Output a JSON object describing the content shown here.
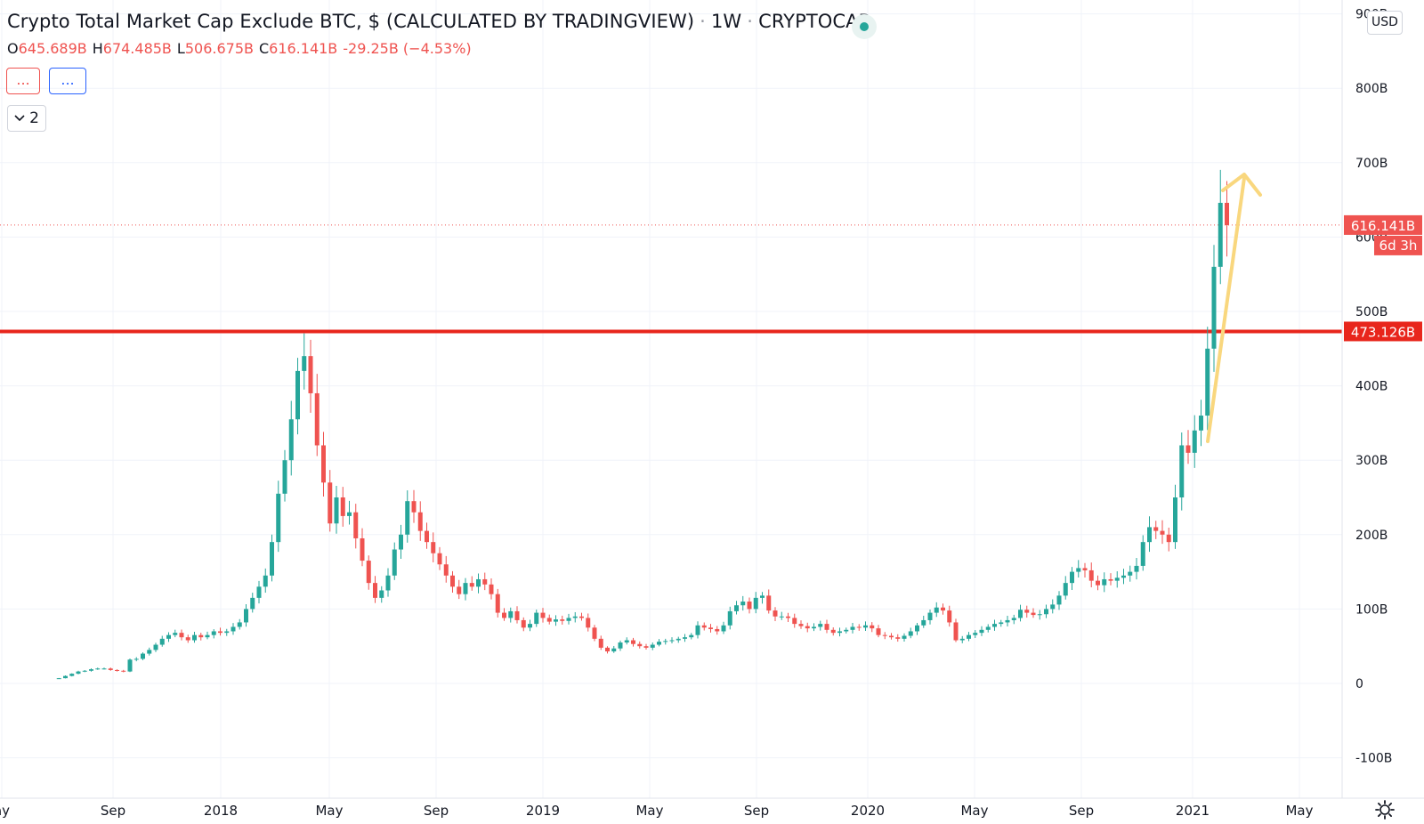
{
  "header": {
    "title": "Crypto Total Market Cap Exclude BTC, $ (CALCULATED BY TRADINGVIEW)",
    "interval": "1W",
    "source": "CRYPTOCAP"
  },
  "ohlc": {
    "o_label": "O",
    "o_value": "645.689B",
    "h_label": "H",
    "h_value": "674.485B",
    "l_label": "L",
    "l_value": "506.675B",
    "c_label": "C",
    "c_value": "616.141B",
    "change": "-29.25B (−4.53%)"
  },
  "indicator_buttons": {
    "red": "...",
    "blue": "..."
  },
  "collapse": {
    "count": "2"
  },
  "currency": "USD",
  "price_badges": {
    "last_price": "616.141B",
    "countdown": "6d 3h",
    "level_price": "473.126B"
  },
  "colors": {
    "up": "#26a69a",
    "down": "#ef5350",
    "level_line": "#e8261c",
    "arrow": "#f9d77e",
    "grid": "#f0f3fa",
    "text": "#131722"
  },
  "icons": {
    "settings": "gear-icon",
    "collapse": "chevron-down-icon",
    "live": "status-dot-icon"
  },
  "chart_data": {
    "type": "candlestick",
    "interval": "1W",
    "y_ticks": [
      "900B",
      "800B",
      "700B",
      "600B",
      "500B",
      "400B",
      "300B",
      "200B",
      "100B",
      "0",
      "-100B"
    ],
    "x_ticks": [
      "ay",
      "Sep",
      "2018",
      "May",
      "Sep",
      "2019",
      "May",
      "Sep",
      "2020",
      "May",
      "Sep",
      "2021",
      "May"
    ],
    "ylim": [
      -100,
      900
    ],
    "unit": "B",
    "horizontal_levels": [
      {
        "value": 473.126,
        "label": "473.126B"
      },
      {
        "value": 616.141,
        "label": "616.141B",
        "style": "dotted"
      }
    ],
    "arrow_annotation": {
      "from": {
        "date": "2020-12-28",
        "value": 340
      },
      "to": {
        "date": "2021-02-15",
        "value": 690
      }
    },
    "closes": [
      [
        9,
        7
      ],
      [
        10,
        10
      ],
      [
        11,
        13
      ],
      [
        12,
        16
      ],
      [
        13,
        17
      ],
      [
        14,
        19
      ],
      [
        15,
        20
      ],
      [
        16,
        20
      ],
      [
        17,
        18
      ],
      [
        18,
        17
      ],
      [
        19,
        16
      ],
      [
        20,
        32
      ],
      [
        21,
        33
      ],
      [
        22,
        40
      ],
      [
        23,
        45
      ],
      [
        24,
        52
      ],
      [
        25,
        60
      ],
      [
        26,
        65
      ],
      [
        27,
        68
      ],
      [
        28,
        62
      ],
      [
        29,
        58
      ],
      [
        30,
        65
      ],
      [
        31,
        62
      ],
      [
        32,
        65
      ],
      [
        33,
        70
      ],
      [
        34,
        68
      ],
      [
        35,
        70
      ],
      [
        36,
        76
      ],
      [
        37,
        82
      ],
      [
        38,
        100
      ],
      [
        39,
        115
      ],
      [
        40,
        130
      ],
      [
        41,
        145
      ],
      [
        42,
        190
      ],
      [
        43,
        255
      ],
      [
        44,
        300
      ],
      [
        45,
        355
      ],
      [
        46,
        420
      ],
      [
        47,
        440
      ],
      [
        48,
        390
      ],
      [
        49,
        320
      ],
      [
        50,
        270
      ],
      [
        51,
        215
      ],
      [
        52,
        250
      ],
      [
        53,
        225
      ],
      [
        54,
        230
      ],
      [
        55,
        195
      ],
      [
        56,
        165
      ],
      [
        57,
        135
      ],
      [
        58,
        115
      ],
      [
        59,
        125
      ],
      [
        60,
        145
      ],
      [
        61,
        180
      ],
      [
        62,
        200
      ],
      [
        63,
        245
      ],
      [
        64,
        230
      ],
      [
        65,
        205
      ],
      [
        66,
        190
      ],
      [
        67,
        175
      ],
      [
        68,
        160
      ],
      [
        69,
        145
      ],
      [
        70,
        130
      ],
      [
        71,
        120
      ],
      [
        72,
        135
      ],
      [
        73,
        130
      ],
      [
        74,
        140
      ],
      [
        75,
        133
      ],
      [
        76,
        120
      ],
      [
        77,
        95
      ],
      [
        78,
        88
      ],
      [
        79,
        97
      ],
      [
        80,
        85
      ],
      [
        81,
        75
      ],
      [
        82,
        80
      ],
      [
        83,
        95
      ],
      [
        84,
        88
      ],
      [
        85,
        83
      ],
      [
        86,
        86
      ],
      [
        87,
        84
      ],
      [
        88,
        88
      ],
      [
        89,
        90
      ],
      [
        90,
        88
      ],
      [
        91,
        75
      ],
      [
        92,
        60
      ],
      [
        93,
        48
      ],
      [
        94,
        43
      ],
      [
        95,
        47
      ],
      [
        96,
        55
      ],
      [
        97,
        58
      ],
      [
        98,
        53
      ],
      [
        99,
        50
      ],
      [
        100,
        48
      ],
      [
        101,
        52
      ],
      [
        102,
        56
      ],
      [
        103,
        57
      ],
      [
        104,
        58
      ],
      [
        105,
        60
      ],
      [
        106,
        62
      ],
      [
        107,
        65
      ],
      [
        108,
        78
      ],
      [
        109,
        75
      ],
      [
        110,
        73
      ],
      [
        111,
        70
      ],
      [
        112,
        78
      ],
      [
        113,
        97
      ],
      [
        114,
        105
      ],
      [
        115,
        110
      ],
      [
        116,
        100
      ],
      [
        117,
        115
      ],
      [
        118,
        118
      ],
      [
        119,
        98
      ],
      [
        120,
        90
      ],
      [
        121,
        90
      ],
      [
        122,
        88
      ],
      [
        123,
        80
      ],
      [
        124,
        77
      ],
      [
        125,
        74
      ],
      [
        126,
        76
      ],
      [
        127,
        80
      ],
      [
        128,
        72
      ],
      [
        129,
        68
      ],
      [
        130,
        70
      ],
      [
        131,
        72
      ],
      [
        132,
        76
      ],
      [
        133,
        75
      ],
      [
        134,
        78
      ],
      [
        135,
        74
      ],
      [
        136,
        65
      ],
      [
        137,
        64
      ],
      [
        138,
        62
      ],
      [
        139,
        60
      ],
      [
        140,
        64
      ],
      [
        141,
        70
      ],
      [
        142,
        78
      ],
      [
        143,
        85
      ],
      [
        144,
        95
      ],
      [
        145,
        102
      ],
      [
        146,
        98
      ],
      [
        147,
        82
      ],
      [
        148,
        58
      ],
      [
        149,
        60
      ],
      [
        150,
        65
      ],
      [
        151,
        68
      ],
      [
        152,
        72
      ],
      [
        153,
        76
      ],
      [
        154,
        80
      ],
      [
        155,
        82
      ],
      [
        156,
        85
      ],
      [
        157,
        88
      ],
      [
        158,
        99
      ],
      [
        159,
        95
      ],
      [
        160,
        92
      ],
      [
        161,
        93
      ],
      [
        162,
        100
      ],
      [
        163,
        106
      ],
      [
        164,
        118
      ],
      [
        165,
        135
      ],
      [
        166,
        150
      ],
      [
        167,
        155
      ],
      [
        168,
        152
      ],
      [
        169,
        138
      ],
      [
        170,
        132
      ],
      [
        171,
        140
      ],
      [
        172,
        138
      ],
      [
        173,
        142
      ],
      [
        174,
        145
      ],
      [
        175,
        150
      ],
      [
        176,
        158
      ],
      [
        177,
        190
      ],
      [
        178,
        210
      ],
      [
        179,
        205
      ],
      [
        180,
        200
      ],
      [
        181,
        190
      ],
      [
        182,
        250
      ],
      [
        183,
        320
      ],
      [
        184,
        310
      ],
      [
        185,
        340
      ],
      [
        186,
        360
      ],
      [
        187,
        450
      ],
      [
        188,
        560
      ],
      [
        189,
        646
      ],
      [
        190,
        616
      ]
    ]
  }
}
